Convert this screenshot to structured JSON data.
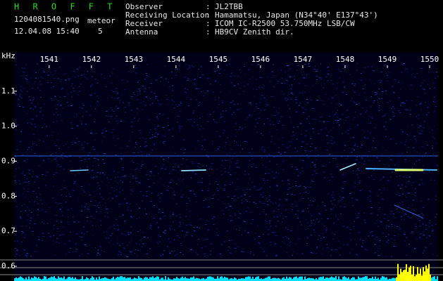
{
  "header": {
    "app_name": "H R O F F T",
    "file_name": "1204081540.png",
    "timestamp": "12.04.08 15:40",
    "meteor_label": "meteor",
    "meteor_count": "5",
    "fields": [
      {
        "label": "Observer",
        "value": "JL2TBB"
      },
      {
        "label": "Receiving Location",
        "value": "Hamamatsu, Japan (N34°40' E137°43')"
      },
      {
        "label": "Receiver",
        "value": "ICOM IC-R2500 53.750MHz LSB/CW"
      },
      {
        "label": "Antenna",
        "value": "HB9CV Zenith dir."
      }
    ],
    "separator": ":"
  },
  "chart_data": {
    "type": "spectrogram",
    "y_label": "kHz",
    "xlim": [
      1540.17,
      1550.2
    ],
    "xticks": [
      1541,
      1542,
      1543,
      1544,
      1545,
      1546,
      1547,
      1548,
      1549,
      1550
    ],
    "ylim": [
      0.558,
      1.21
    ],
    "yticks": [
      {
        "value": 1.1,
        "label": "1.1"
      },
      {
        "value": 1,
        "label": "1.0"
      },
      {
        "value": 0.9,
        "label": "0.9"
      },
      {
        "value": 0.8,
        "label": "0.8"
      },
      {
        "value": 0.7,
        "label": "0.7"
      },
      {
        "value": 0.6,
        "label": "0.6"
      }
    ]
  }
}
